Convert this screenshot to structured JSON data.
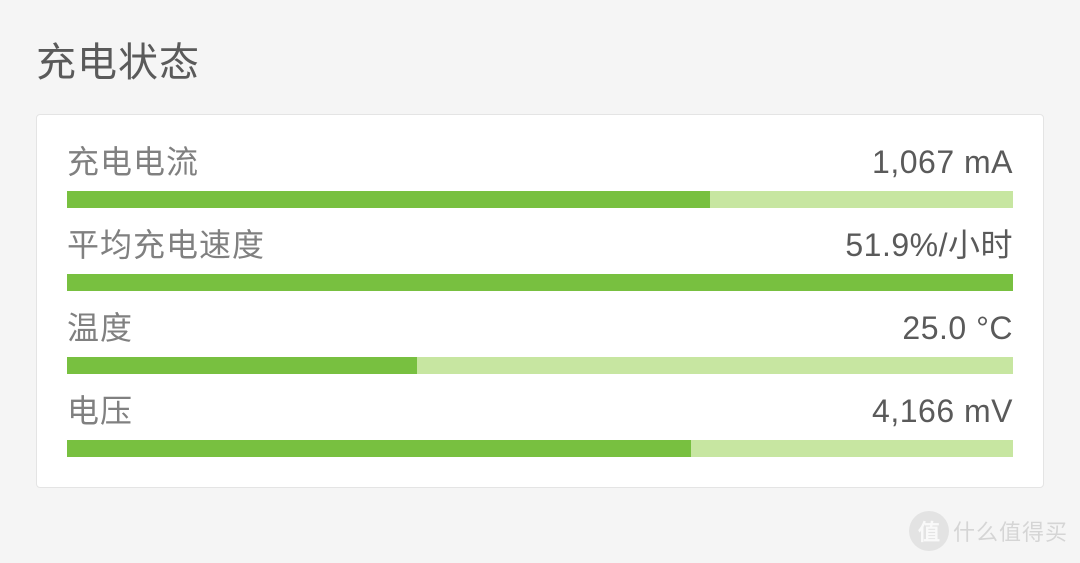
{
  "page": {
    "title": "充电状态",
    "background_color": "#f5f5f5",
    "card_background": "#ffffff",
    "card_border": "#e4e4e4"
  },
  "metrics": [
    {
      "label": "充电电流",
      "value": "1,067 mA",
      "progress_percent": 68,
      "bar_fill_color": "#78c040",
      "bar_track_color": "#c7e6a1"
    },
    {
      "label": "平均充电速度",
      "value": "51.9%/小时",
      "progress_percent": 100,
      "bar_fill_color": "#78c040",
      "bar_track_color": "#c7e6a1"
    },
    {
      "label": "温度",
      "value": "25.0 °C",
      "progress_percent": 37,
      "bar_fill_color": "#78c040",
      "bar_track_color": "#c7e6a1"
    },
    {
      "label": "电压",
      "value": "4,166 mV",
      "progress_percent": 66,
      "bar_fill_color": "#78c040",
      "bar_track_color": "#c7e6a1"
    }
  ],
  "watermark": {
    "badge": "值",
    "text": "什么值得买"
  },
  "typography": {
    "title_fontsize": 40,
    "label_fontsize": 32,
    "value_fontsize": 32,
    "title_color": "#5a5a5a",
    "label_color": "#808080",
    "value_color": "#5a5a5a"
  }
}
